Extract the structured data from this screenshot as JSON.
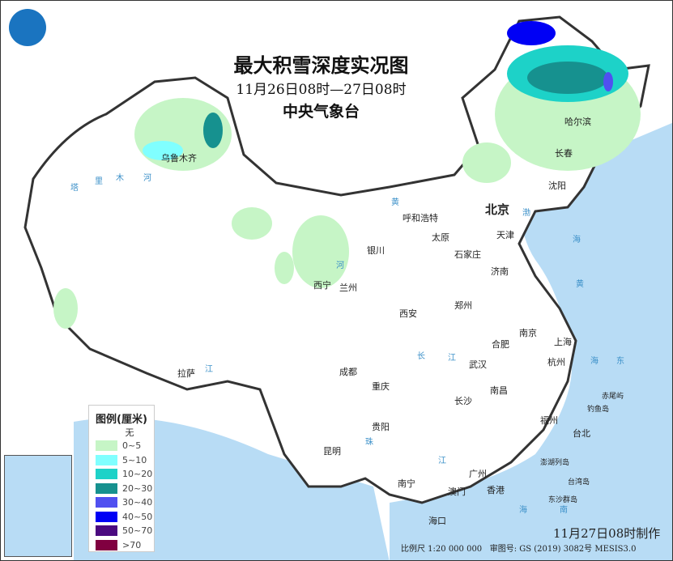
{
  "title": "最大积雪深度实况图",
  "period": "11月26日08时—27日08时",
  "issuer": "中央气象台",
  "logo": "中央气象台",
  "legend": {
    "title": "图例(厘米)",
    "none": "无",
    "items": [
      {
        "label": "0~5",
        "color": "#c6f5c6"
      },
      {
        "label": "5~10",
        "color": "#80ffff"
      },
      {
        "label": "10~20",
        "color": "#1dd2c8"
      },
      {
        "label": "20~30",
        "color": "#16918f"
      },
      {
        "label": "30~40",
        "color": "#5050f0"
      },
      {
        "label": "40~50",
        "color": "#0000f5"
      },
      {
        "label": "50~70",
        "color": "#4b0a80"
      },
      {
        "label": ">70",
        "color": "#800040"
      }
    ]
  },
  "cities": [
    "乌鲁木齐",
    "北京",
    "天津",
    "哈尔滨",
    "长春",
    "沈阳",
    "呼和浩特",
    "银川",
    "太原",
    "石家庄",
    "济南",
    "西宁",
    "兰州",
    "郑州",
    "西安",
    "南京",
    "合肥",
    "上海",
    "武汉",
    "杭州",
    "成都",
    "重庆",
    "长沙",
    "南昌",
    "拉萨",
    "贵阳",
    "福州",
    "台北",
    "昆明",
    "广州",
    "南宁",
    "澳门",
    "香港",
    "海口"
  ],
  "islands": [
    "赤尾屿",
    "钓鱼岛",
    "澎湖列岛",
    "台湾岛",
    "东沙群岛"
  ],
  "waters": [
    "塔",
    "里",
    "木",
    "河",
    "黄",
    "河",
    "长",
    "江",
    "江",
    "珠",
    "江",
    "渤",
    "海",
    "黄",
    "海",
    "东",
    "海",
    "南",
    "海"
  ],
  "footer": {
    "made": "11月27日08时制作",
    "scale": "比例尺 1:20 000 000",
    "approval": "审图号: GS (2019) 3082号 MESIS3.0"
  },
  "colors": {
    "sea": "#b8dcf5",
    "border": "#333333"
  }
}
